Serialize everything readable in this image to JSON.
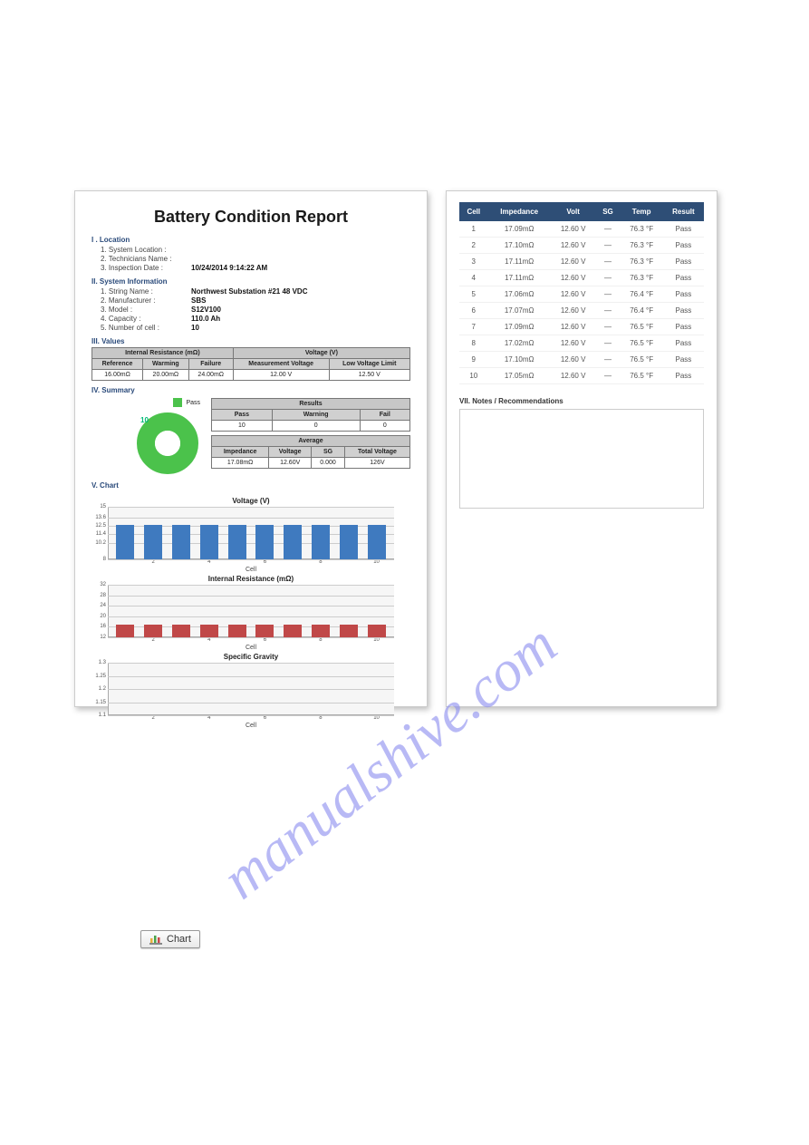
{
  "watermark": "manualshive.com",
  "report": {
    "title": "Battery Condition Report",
    "sections": {
      "location": {
        "heading": "I . Location",
        "items": [
          {
            "k": "1. System Location :",
            "v": ""
          },
          {
            "k": "2. Technicians Name :",
            "v": ""
          },
          {
            "k": "3. Inspection Date :",
            "v": "10/24/2014 9:14:22 AM"
          }
        ]
      },
      "sysinfo": {
        "heading": "II. System Information",
        "items": [
          {
            "k": "1. String Name :",
            "v": "Northwest Substation #21 48 VDC"
          },
          {
            "k": "2. Manufacturer :",
            "v": "SBS"
          },
          {
            "k": "3. Model :",
            "v": "S12V100"
          },
          {
            "k": "4. Capacity :",
            "v": "110.0 Ah"
          },
          {
            "k": "5. Number of cell :",
            "v": "10"
          }
        ]
      },
      "values": {
        "heading": "III. Values",
        "ir_group": "Internal Resistance (mΩ)",
        "v_group": "Voltage (V)",
        "cols": [
          "Reference",
          "Warming",
          "Failure",
          "Measurement Voltage",
          "Low Voltage Limit"
        ],
        "row": [
          "16.00mΩ",
          "20.00mΩ",
          "24.00mΩ",
          "12.00 V",
          "12.50 V"
        ]
      },
      "summary": {
        "heading": "IV. Summary",
        "legend": "Pass",
        "donut": {
          "slices": [
            {
              "color": "#4bc24b",
              "frac": 1.0
            }
          ],
          "label": "10"
        },
        "results": {
          "title": "Results",
          "cols": [
            "Pass",
            "Warning",
            "Fail"
          ],
          "row": [
            "10",
            "0",
            "0"
          ]
        },
        "average": {
          "title": "Average",
          "cols": [
            "Impedance",
            "Voltage",
            "SG",
            "Total Voltage"
          ],
          "row": [
            "17.08mΩ",
            "12.60V",
            "0.000",
            "126V"
          ]
        }
      },
      "charts": {
        "heading": "V. Chart",
        "voltage": {
          "title": "Voltage (V)",
          "color": "#3f7abf",
          "ylim": [
            8,
            15
          ],
          "yticks": [
            15,
            13.6,
            12.5,
            11.4,
            10.2,
            8
          ],
          "x": [
            1,
            2,
            3,
            4,
            5,
            6,
            7,
            8,
            9,
            10
          ],
          "xticks": [
            2,
            4,
            6,
            8,
            10
          ],
          "values": [
            12.6,
            12.6,
            12.6,
            12.6,
            12.6,
            12.6,
            12.6,
            12.6,
            12.6,
            12.6
          ],
          "xlabel": "Cell"
        },
        "resistance": {
          "title": "Internal Resistance (mΩ)",
          "color": "#c04848",
          "ylim": [
            12,
            32
          ],
          "yticks": [
            32,
            28,
            24,
            20,
            16,
            12
          ],
          "x": [
            1,
            2,
            3,
            4,
            5,
            6,
            7,
            8,
            9,
            10
          ],
          "xticks": [
            2,
            4,
            6,
            8,
            10
          ],
          "values": [
            17,
            17,
            17,
            17,
            17,
            17,
            17,
            17,
            17,
            17
          ],
          "xlabel": "Cell"
        },
        "sg": {
          "title": "Specific Gravity",
          "color": "#888",
          "ylim": [
            1.1,
            1.3
          ],
          "yticks": [
            1.3,
            1.25,
            1.2,
            1.15,
            1.1
          ],
          "x": [
            1,
            2,
            3,
            4,
            5,
            6,
            7,
            8,
            9,
            10
          ],
          "xticks": [
            2,
            4,
            6,
            8,
            10
          ],
          "values": [],
          "xlabel": "Cell"
        }
      }
    }
  },
  "cellTable": {
    "cols": [
      "Cell",
      "Impedance",
      "Volt",
      "SG",
      "Temp",
      "Result"
    ],
    "rows": [
      [
        "1",
        "17.09mΩ",
        "12.60 V",
        "—",
        "76.3 °F",
        "Pass"
      ],
      [
        "2",
        "17.10mΩ",
        "12.60 V",
        "—",
        "76.3 °F",
        "Pass"
      ],
      [
        "3",
        "17.11mΩ",
        "12.60 V",
        "—",
        "76.3 °F",
        "Pass"
      ],
      [
        "4",
        "17.11mΩ",
        "12.60 V",
        "—",
        "76.3 °F",
        "Pass"
      ],
      [
        "5",
        "17.06mΩ",
        "12.60 V",
        "—",
        "76.4 °F",
        "Pass"
      ],
      [
        "6",
        "17.07mΩ",
        "12.60 V",
        "—",
        "76.4 °F",
        "Pass"
      ],
      [
        "7",
        "17.09mΩ",
        "12.60 V",
        "—",
        "76.5 °F",
        "Pass"
      ],
      [
        "8",
        "17.02mΩ",
        "12.60 V",
        "—",
        "76.5 °F",
        "Pass"
      ],
      [
        "9",
        "17.10mΩ",
        "12.60 V",
        "—",
        "76.5 °F",
        "Pass"
      ],
      [
        "10",
        "17.05mΩ",
        "12.60 V",
        "—",
        "76.5 °F",
        "Pass"
      ]
    ],
    "notesHeading": "VII. Notes / Recommendations"
  },
  "chartButton": {
    "label": "Chart"
  }
}
